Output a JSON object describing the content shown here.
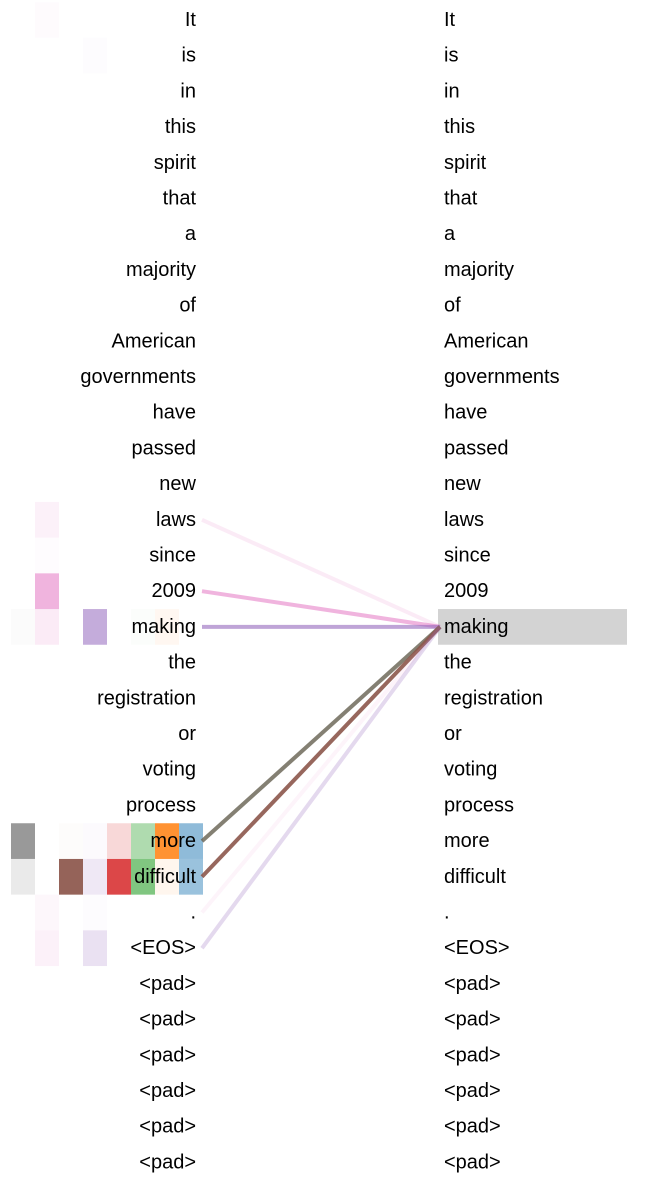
{
  "tokens": [
    "It",
    "is",
    "in",
    "this",
    "spirit",
    "that",
    "a",
    "majority",
    "of",
    "American",
    "governments",
    "have",
    "passed",
    "new",
    "laws",
    "since",
    "2009",
    "making",
    "the",
    "registration",
    "or",
    "voting",
    "process",
    "more",
    "difficult",
    ".",
    "<EOS>",
    "<pad>",
    "<pad>",
    "<pad>",
    "<pad>",
    "<pad>",
    "<pad>"
  ],
  "selected_token_index": 17,
  "highlight_color": "#d3d3d3",
  "head_colors": [
    "#7f7f7f",
    "#e377c2",
    "#8c564b",
    "#9467bd",
    "#d62728",
    "#2ca02c",
    "#ff7f0e",
    "#1f77b4"
  ],
  "head_cells": [
    {
      "row": 0,
      "head": 1,
      "alpha": 0.03
    },
    {
      "row": 1,
      "head": 3,
      "alpha": 0.02
    },
    {
      "row": 14,
      "head": 1,
      "alpha": 0.1
    },
    {
      "row": 15,
      "head": 1,
      "alpha": 0.02
    },
    {
      "row": 16,
      "head": 1,
      "alpha": 0.55
    },
    {
      "row": 17,
      "head": 0,
      "alpha": 0.03
    },
    {
      "row": 17,
      "head": 1,
      "alpha": 0.15
    },
    {
      "row": 17,
      "head": 3,
      "alpha": 0.55
    },
    {
      "row": 17,
      "head": 5,
      "alpha": 0.02
    },
    {
      "row": 17,
      "head": 6,
      "alpha": 0.06
    },
    {
      "row": 23,
      "head": 0,
      "alpha": 0.8
    },
    {
      "row": 23,
      "head": 2,
      "alpha": 0.02
    },
    {
      "row": 23,
      "head": 3,
      "alpha": 0.03
    },
    {
      "row": 23,
      "head": 4,
      "alpha": 0.18
    },
    {
      "row": 23,
      "head": 5,
      "alpha": 0.38
    },
    {
      "row": 23,
      "head": 6,
      "alpha": 0.85
    },
    {
      "row": 23,
      "head": 7,
      "alpha": 0.5
    },
    {
      "row": 24,
      "head": 0,
      "alpha": 0.16
    },
    {
      "row": 24,
      "head": 2,
      "alpha": 0.92
    },
    {
      "row": 24,
      "head": 3,
      "alpha": 0.15
    },
    {
      "row": 24,
      "head": 4,
      "alpha": 0.85
    },
    {
      "row": 24,
      "head": 5,
      "alpha": 0.6
    },
    {
      "row": 24,
      "head": 6,
      "alpha": 0.07
    },
    {
      "row": 24,
      "head": 7,
      "alpha": 0.45
    },
    {
      "row": 25,
      "head": 1,
      "alpha": 0.06
    },
    {
      "row": 25,
      "head": 3,
      "alpha": 0.02
    },
    {
      "row": 26,
      "head": 1,
      "alpha": 0.1
    },
    {
      "row": 26,
      "head": 3,
      "alpha": 0.2
    }
  ],
  "attention_lines": [
    {
      "from": 14,
      "color": "#e377c2",
      "alpha": 0.15
    },
    {
      "from": 16,
      "color": "#e377c2",
      "alpha": 0.55
    },
    {
      "from": 17,
      "color": "#9467bd",
      "alpha": 0.6
    },
    {
      "from": 23,
      "color": "#6f6a5a",
      "alpha": 0.85
    },
    {
      "from": 24,
      "color": "#8c564b",
      "alpha": 0.9
    },
    {
      "from": 25,
      "color": "#e377c2",
      "alpha": 0.08
    },
    {
      "from": 26,
      "color": "#9467bd",
      "alpha": 0.25
    }
  ]
}
